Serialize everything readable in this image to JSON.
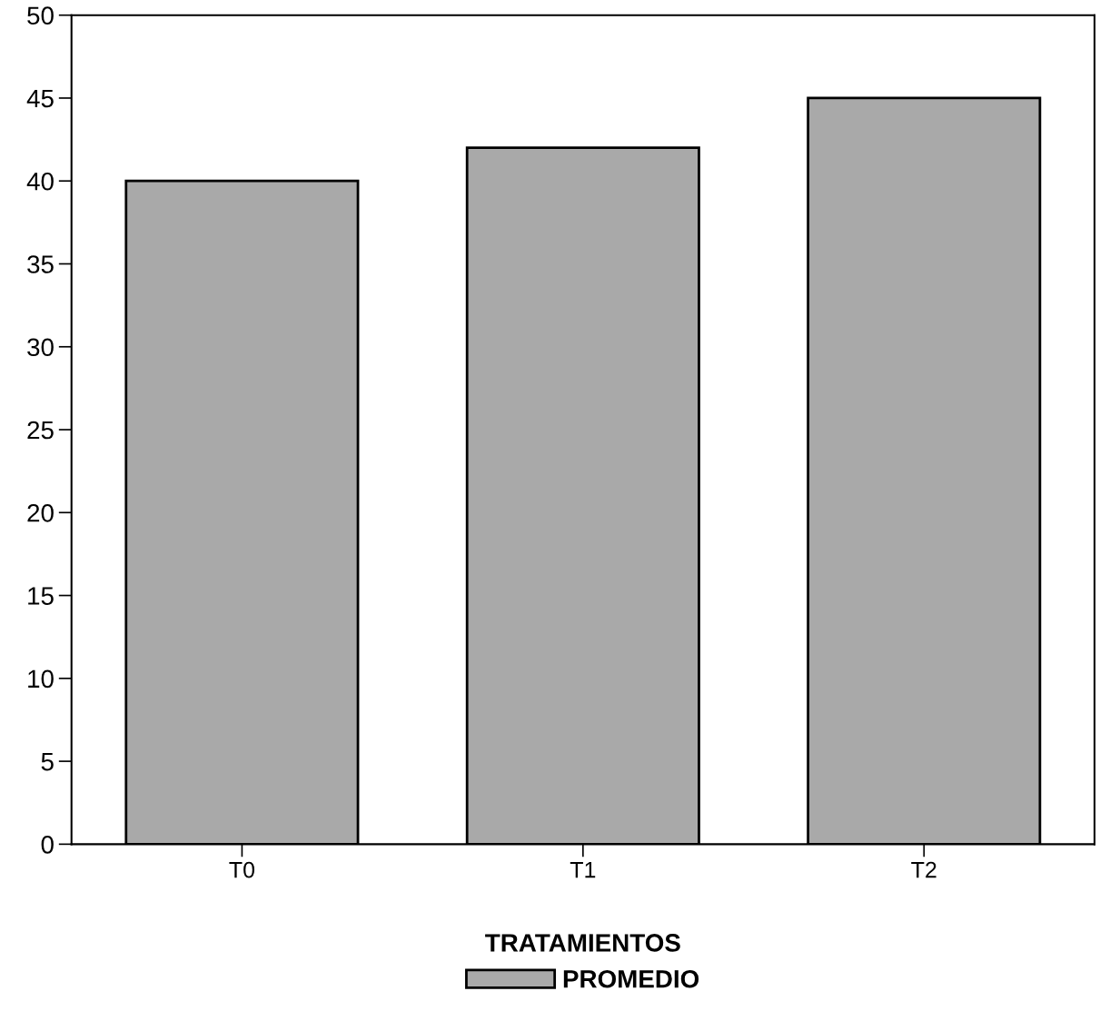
{
  "chart_data": {
    "type": "bar",
    "categories": [
      "T0",
      "T1",
      "T2"
    ],
    "series": [
      {
        "name": "PROMEDIO",
        "color": "#a9a9a9",
        "values": [
          40,
          42,
          45
        ]
      }
    ],
    "legend_title": "TRATAMIENTOS",
    "legend": "bottom",
    "ylim": [
      0,
      50
    ],
    "yticks": [
      0,
      5,
      10,
      15,
      20,
      25,
      30,
      35,
      40,
      45,
      50
    ],
    "grid": false
  }
}
